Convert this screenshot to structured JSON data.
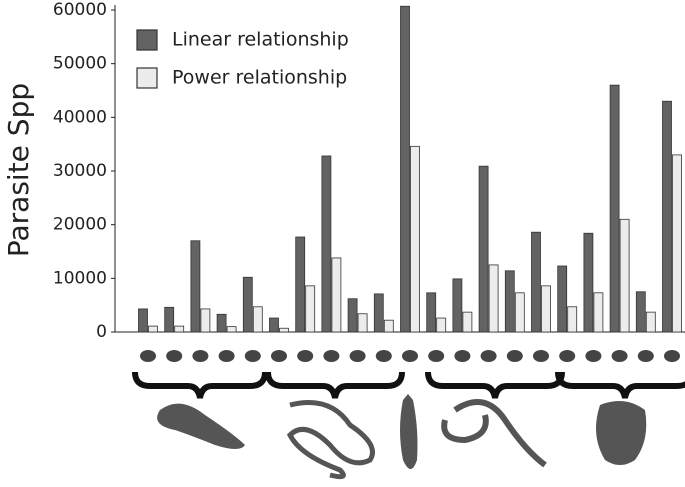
{
  "chart_data": {
    "type": "bar",
    "y_label": "Parasite Spp",
    "categories": [
      null,
      null,
      null,
      null,
      null,
      null,
      null,
      null,
      null,
      null,
      null,
      null,
      null,
      null,
      null,
      null,
      null,
      null,
      null,
      null,
      null
    ],
    "series": [
      {
        "name": "Linear relationship",
        "color": "#636363",
        "values": [
          4300,
          4600,
          17000,
          3300,
          10200,
          2600,
          17700,
          32800,
          6200,
          7100,
          60700,
          7300,
          9900,
          30900,
          11400,
          18600,
          12300,
          18400,
          46000,
          7500,
          43000
        ]
      },
      {
        "name": "Power relationship",
        "color": "#ececec",
        "values": [
          1100,
          1100,
          4300,
          1000,
          4700,
          700,
          8600,
          13800,
          3400,
          2200,
          34600,
          2600,
          3700,
          12500,
          7300,
          8600,
          4700,
          7300,
          21000,
          3700,
          33000
        ]
      }
    ],
    "ylim": [
      0,
      60000
    ],
    "yticks": [
      0,
      10000,
      20000,
      30000,
      40000,
      50000,
      60000
    ]
  }
}
